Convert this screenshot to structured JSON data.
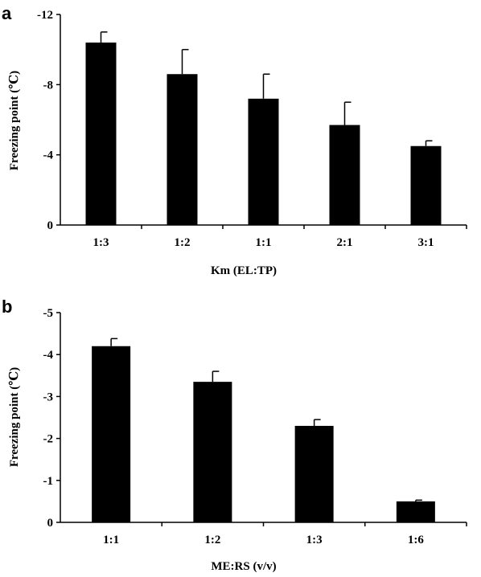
{
  "chart_data": [
    {
      "panel": "a",
      "type": "bar",
      "categories": [
        "1:3",
        "1:2",
        "1:1",
        "2:1",
        "3:1"
      ],
      "values": [
        -10.4,
        -8.6,
        -7.2,
        -5.7,
        -4.5
      ],
      "errors": [
        0.6,
        1.4,
        1.4,
        1.3,
        0.3
      ],
      "xlabel": "Km (EL:TP)",
      "ylabel": "Freezing point (℃)",
      "yticks": [
        0,
        -4,
        -8,
        -12
      ],
      "ytick_labels": [
        "0",
        "-4",
        "-8",
        "-12"
      ],
      "ylim": [
        0,
        -12
      ],
      "inverted_y": true,
      "grid": false,
      "bar_color": "#000000"
    },
    {
      "panel": "b",
      "type": "bar",
      "categories": [
        "1:1",
        "1:2",
        "1:3",
        "1:6"
      ],
      "values": [
        -4.2,
        -3.35,
        -2.3,
        -0.5
      ],
      "errors": [
        0.18,
        0.25,
        0.15,
        0.03
      ],
      "xlabel": "ME:RS (v/v)",
      "ylabel": "Freezing point (℃)",
      "yticks": [
        0,
        -1,
        -2,
        -3,
        -4,
        -5
      ],
      "ytick_labels": [
        "0",
        "-1",
        "-2",
        "-3",
        "-4",
        "-5"
      ],
      "ylim": [
        0,
        -5
      ],
      "inverted_y": true,
      "grid": false,
      "bar_color": "#000000"
    }
  ]
}
